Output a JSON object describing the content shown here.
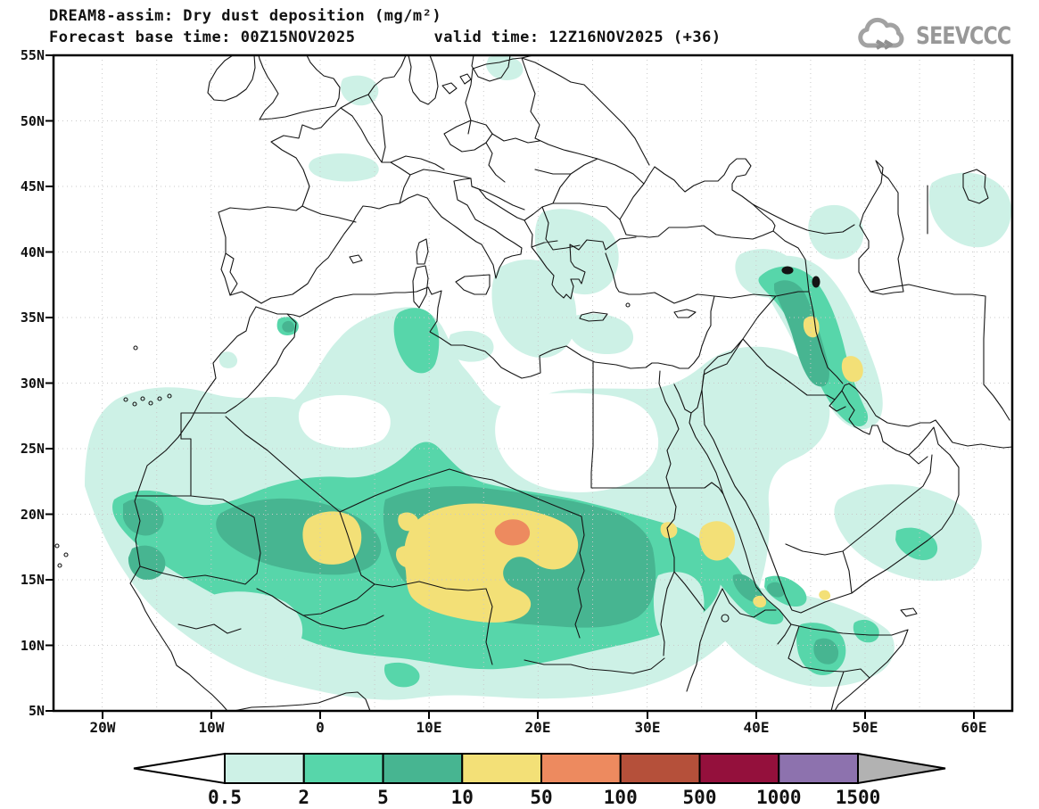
{
  "header": {
    "title": "DREAM8-assim: Dry dust deposition (mg/m²)",
    "forecast_base": "Forecast base time: 00Z15NOV2025",
    "valid_time": "valid time: 12Z16NOV2025 (+36)",
    "logo_text": "SEEVCCC"
  },
  "map": {
    "y_axis_labels": [
      "55N",
      "50N",
      "45N",
      "40N",
      "35N",
      "30N",
      "25N",
      "20N",
      "15N",
      "10N",
      "5N"
    ],
    "x_axis_labels": [
      "20W",
      "10W",
      "0",
      "10E",
      "20E",
      "30E",
      "40E",
      "50E",
      "60E"
    ]
  },
  "colorbar": {
    "labels": [
      "0.5",
      "2",
      "5",
      "10",
      "50",
      "100",
      "500",
      "1000",
      "1500"
    ],
    "colors": [
      "#cdf1e6",
      "#57d6aa",
      "#47b591",
      "#f3e077",
      "#ed8a5f",
      "#b5503a",
      "#94103c",
      "#8d72ae"
    ],
    "below_min_color": "#ffffff",
    "above_max_color": "#b2b2b2"
  },
  "chart_data": {
    "type": "filled-contour-map",
    "model": "DREAM8-assim",
    "variable": "Dry dust deposition",
    "units": "mg/m²",
    "base_time": "00Z15NOV2025",
    "valid_time": "12Z16NOV2025",
    "forecast_hour": "+36",
    "lat_range": [
      "5N",
      "55N"
    ],
    "lon_range": [
      "20W",
      "60E"
    ],
    "contour_levels": [
      0.5,
      2,
      5,
      10,
      50,
      100,
      500,
      1000,
      1500
    ],
    "provider": "SEEVCCC"
  }
}
